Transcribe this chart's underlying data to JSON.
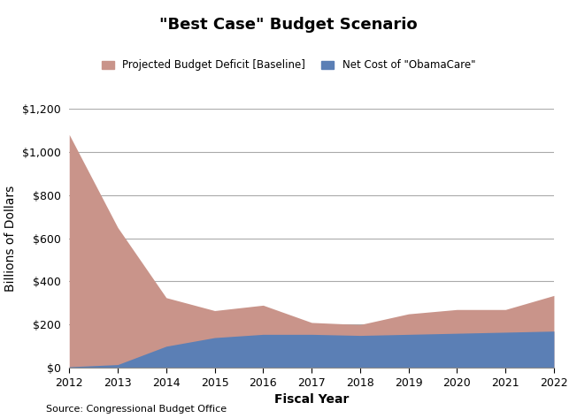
{
  "title": "\"Best Case\" Budget Scenario",
  "xlabel": "Fiscal Year",
  "ylabel": "Billions of Dollars",
  "source": "Source: Congressional Budget Office",
  "years": [
    2012,
    2013,
    2014,
    2015,
    2016,
    2017,
    2018,
    2019,
    2020,
    2021,
    2022
  ],
  "baseline_deficit": [
    1080,
    650,
    325,
    265,
    290,
    210,
    200,
    250,
    270,
    270,
    335
  ],
  "obamacare_cost": [
    5,
    15,
    100,
    140,
    155,
    155,
    150,
    155,
    160,
    165,
    170
  ],
  "baseline_color": "#c9948a",
  "obamacare_color": "#5b7fb5",
  "legend_baseline": "Projected Budget Deficit [Baseline]",
  "legend_obamacare": "Net Cost of \"ObamaCare\"",
  "ylim": [
    0,
    1200
  ],
  "yticks": [
    0,
    200,
    400,
    600,
    800,
    1000,
    1200
  ],
  "background_color": "#ffffff",
  "grid_color": "#aaaaaa",
  "title_fontsize": 13,
  "axis_label_fontsize": 10,
  "legend_fontsize": 8.5,
  "tick_fontsize": 9
}
